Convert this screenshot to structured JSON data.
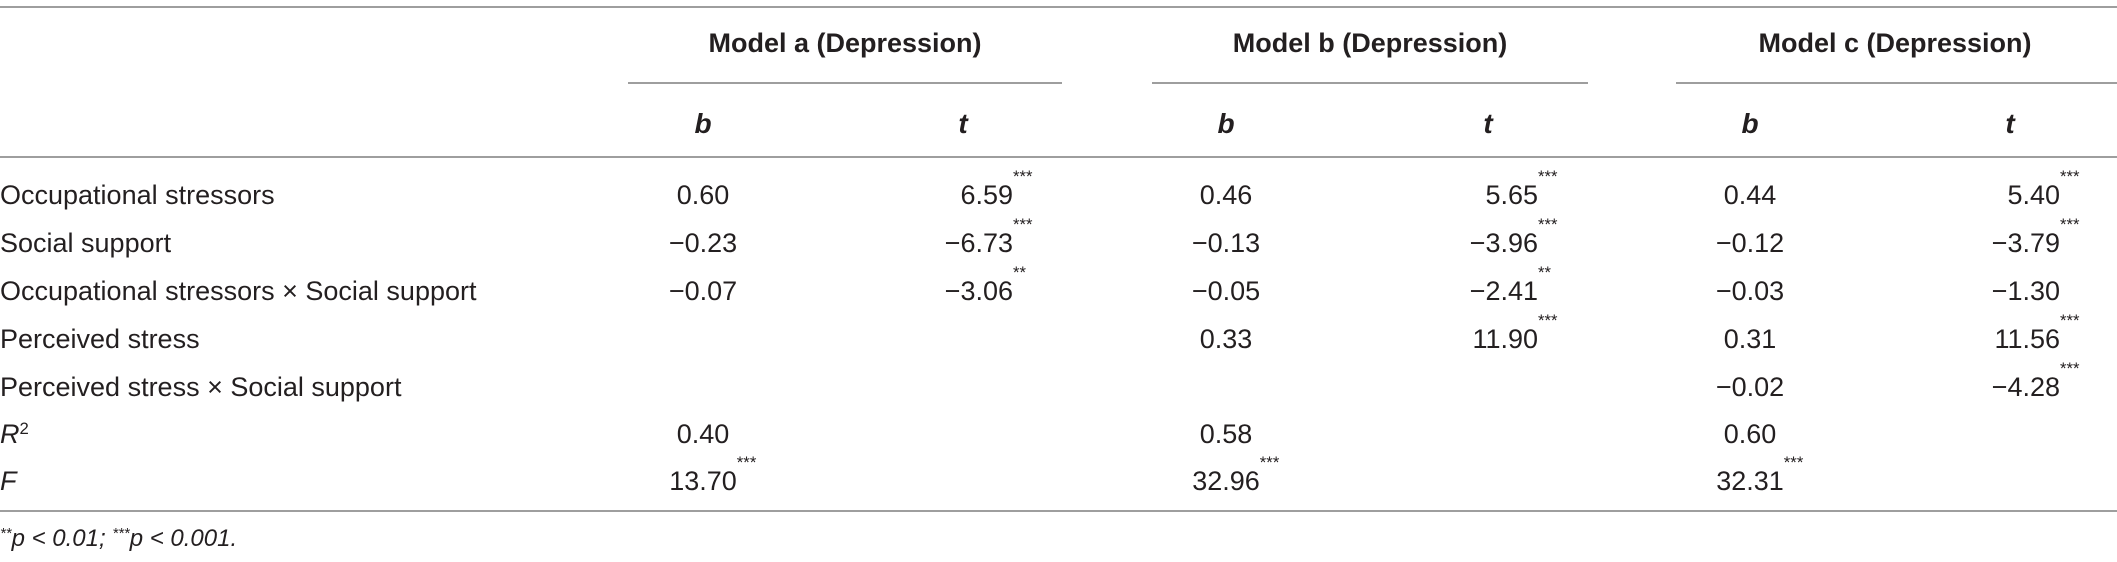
{
  "table": {
    "models": [
      {
        "title": "Model a (Depression)",
        "col_b": "b",
        "col_t": "t"
      },
      {
        "title": "Model b (Depression)",
        "col_b": "b",
        "col_t": "t"
      },
      {
        "title": "Model c (Depression)",
        "col_b": "b",
        "col_t": "t"
      }
    ],
    "rows": [
      {
        "label": "Occupational stressors",
        "sup": "",
        "cells": [
          {
            "b": "0.60",
            "b_sig": "",
            "t": "6.59",
            "t_sig": "***"
          },
          {
            "b": "0.46",
            "b_sig": "",
            "t": "5.65",
            "t_sig": "***"
          },
          {
            "b": "0.44",
            "b_sig": "",
            "t": "5.40",
            "t_sig": "***"
          }
        ]
      },
      {
        "label": "Social support",
        "sup": "",
        "cells": [
          {
            "b": "−0.23",
            "b_sig": "",
            "t": "−6.73",
            "t_sig": "***"
          },
          {
            "b": "−0.13",
            "b_sig": "",
            "t": "−3.96",
            "t_sig": "***"
          },
          {
            "b": "−0.12",
            "b_sig": "",
            "t": "−3.79",
            "t_sig": "***"
          }
        ]
      },
      {
        "label": "Occupational stressors × Social support",
        "sup": "",
        "cells": [
          {
            "b": "−0.07",
            "b_sig": "",
            "t": "−3.06",
            "t_sig": "**"
          },
          {
            "b": "−0.05",
            "b_sig": "",
            "t": "−2.41",
            "t_sig": "**"
          },
          {
            "b": "−0.03",
            "b_sig": "",
            "t": "−1.30",
            "t_sig": ""
          }
        ]
      },
      {
        "label": "Perceived stress",
        "sup": "",
        "cells": [
          {
            "b": "",
            "b_sig": "",
            "t": "",
            "t_sig": ""
          },
          {
            "b": "0.33",
            "b_sig": "",
            "t": "11.90",
            "t_sig": "***"
          },
          {
            "b": "0.31",
            "b_sig": "",
            "t": "11.56",
            "t_sig": "***"
          }
        ]
      },
      {
        "label": "Perceived stress × Social support",
        "sup": "",
        "cells": [
          {
            "b": "",
            "b_sig": "",
            "t": "",
            "t_sig": ""
          },
          {
            "b": "",
            "b_sig": "",
            "t": "",
            "t_sig": ""
          },
          {
            "b": "−0.02",
            "b_sig": "",
            "t": "−4.28",
            "t_sig": "***"
          }
        ]
      },
      {
        "label": "R",
        "sup": "2",
        "italic": true,
        "cells": [
          {
            "b": "0.40",
            "b_sig": "",
            "t": "",
            "t_sig": ""
          },
          {
            "b": "0.58",
            "b_sig": "",
            "t": "",
            "t_sig": ""
          },
          {
            "b": "0.60",
            "b_sig": "",
            "t": "",
            "t_sig": ""
          }
        ]
      },
      {
        "label": "F",
        "sup": "",
        "italic": true,
        "cells": [
          {
            "b": "13.70",
            "b_sig": "***",
            "t": "",
            "t_sig": ""
          },
          {
            "b": "32.96",
            "b_sig": "***",
            "t": "",
            "t_sig": ""
          },
          {
            "b": "32.31",
            "b_sig": "***",
            "t": "",
            "t_sig": ""
          }
        ]
      }
    ],
    "footnote": {
      "part1_stars": "**",
      "part1_text": "p < 0.01; ",
      "part2_stars": "***",
      "part2_text": "p < 0.001."
    }
  }
}
